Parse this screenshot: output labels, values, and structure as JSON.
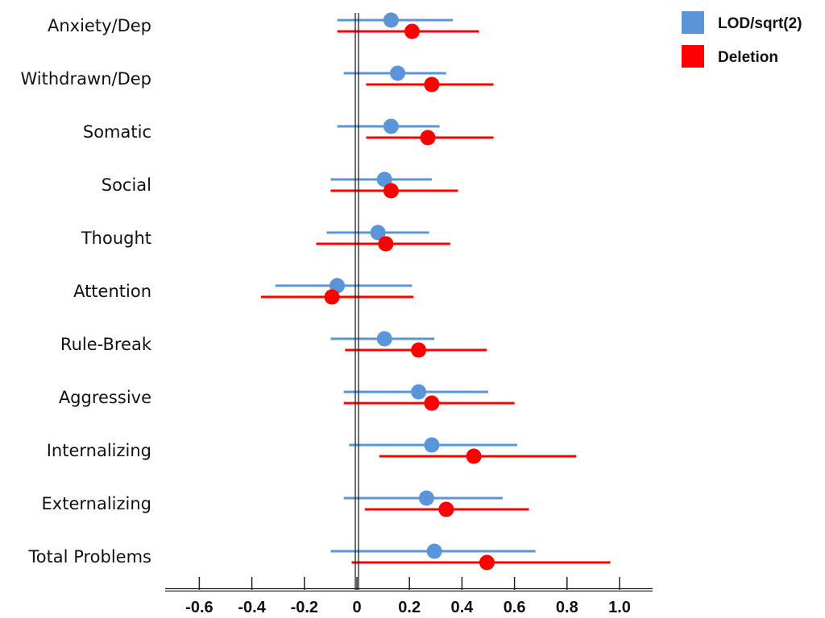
{
  "chart_data": {
    "type": "forest",
    "title": "",
    "xlabel": "",
    "ylabel": "",
    "xlim": [
      -0.72,
      1.13
    ],
    "x_ticks": [
      -0.6,
      -0.4,
      -0.2,
      0,
      0.2,
      0.4,
      0.6,
      0.8,
      1.0
    ],
    "x_tick_labels": [
      "-0.6",
      "-0.4",
      "-0.2",
      "0",
      "0.2",
      "0.4",
      "0.6",
      "0.8",
      "1.0"
    ],
    "reference_line": 0,
    "legend_position": "top-right",
    "categories": [
      "Anxiety/Dep",
      "Withdrawn/Dep",
      "Somatic",
      "Social",
      "Thought",
      "Attention",
      "Rule-Break",
      "Aggressive",
      "Internalizing",
      "Externalizing",
      "Total Problems"
    ],
    "series": [
      {
        "name": "LOD/sqrt(2)",
        "color": "#5b95d9",
        "estimates": [
          0.13,
          0.155,
          0.13,
          0.105,
          0.08,
          -0.075,
          0.105,
          0.235,
          0.285,
          0.265,
          0.295
        ],
        "lower": [
          -0.075,
          -0.05,
          -0.075,
          -0.1,
          -0.115,
          -0.31,
          -0.1,
          -0.05,
          -0.03,
          -0.05,
          -0.1
        ],
        "upper": [
          0.365,
          0.34,
          0.315,
          0.285,
          0.275,
          0.21,
          0.295,
          0.5,
          0.61,
          0.555,
          0.68
        ]
      },
      {
        "name": "Deletion",
        "color": "#ff0000",
        "estimates": [
          0.21,
          0.285,
          0.27,
          0.13,
          0.11,
          -0.095,
          0.235,
          0.285,
          0.445,
          0.34,
          0.495
        ],
        "lower": [
          -0.075,
          0.035,
          0.035,
          -0.1,
          -0.155,
          -0.365,
          -0.045,
          -0.05,
          0.085,
          0.03,
          -0.02
        ],
        "upper": [
          0.465,
          0.52,
          0.52,
          0.385,
          0.355,
          0.215,
          0.495,
          0.6,
          0.835,
          0.655,
          0.965
        ]
      }
    ]
  }
}
